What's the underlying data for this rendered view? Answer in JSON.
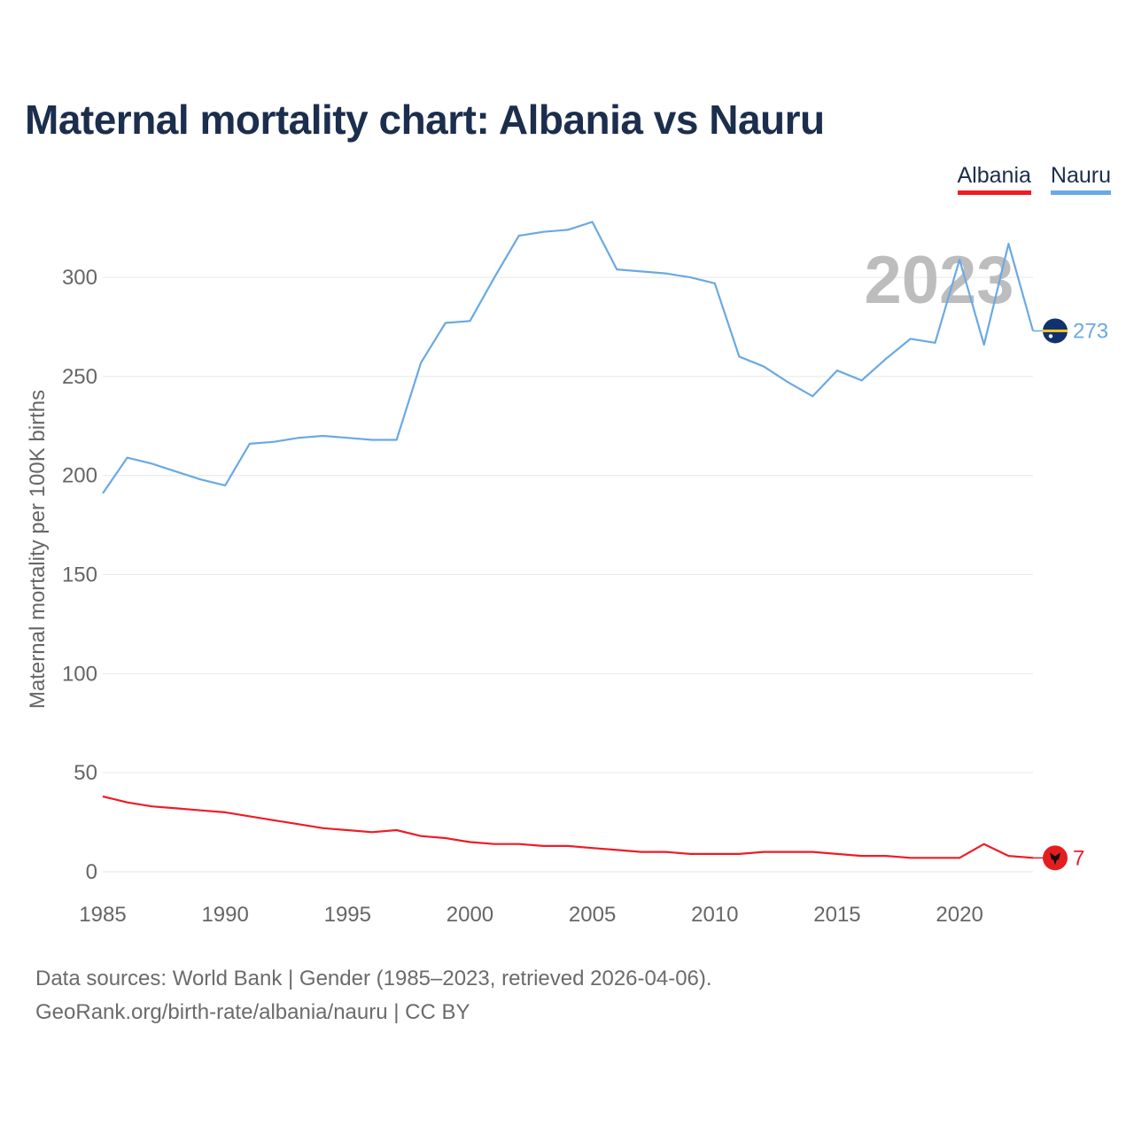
{
  "title": "Maternal mortality chart: Albania vs Nauru",
  "legend": [
    {
      "label": "Albania",
      "color": "#ee1c25"
    },
    {
      "label": "Nauru",
      "color": "#6aa9e3"
    }
  ],
  "watermark_year": "2023",
  "footer": {
    "source": "Data sources: World Bank | Gender (1985–2023, retrieved 2026-04-06).",
    "credit": "GeoRank.org/birth-rate/albania/nauru | CC BY"
  },
  "chart_data": {
    "type": "line",
    "title": "Maternal mortality chart: Albania vs Nauru",
    "xlabel": "",
    "ylabel": "Maternal mortality per 100K births",
    "xlim": [
      1985,
      2023
    ],
    "ylim": [
      0,
      330
    ],
    "x_ticks": [
      1985,
      1990,
      1995,
      2000,
      2005,
      2010,
      2015,
      2020
    ],
    "y_ticks": [
      0,
      50,
      100,
      150,
      200,
      250,
      300
    ],
    "grid": true,
    "legend_position": "top-right",
    "x": [
      1985,
      1986,
      1987,
      1988,
      1989,
      1990,
      1991,
      1992,
      1993,
      1994,
      1995,
      1996,
      1997,
      1998,
      1999,
      2000,
      2001,
      2002,
      2003,
      2004,
      2005,
      2006,
      2007,
      2008,
      2009,
      2010,
      2011,
      2012,
      2013,
      2014,
      2015,
      2016,
      2017,
      2018,
      2019,
      2020,
      2021,
      2022,
      2023
    ],
    "series": [
      {
        "name": "Albania",
        "color": "#ee1c25",
        "end_label": "7",
        "values": [
          38,
          35,
          33,
          32,
          31,
          30,
          28,
          26,
          24,
          22,
          21,
          20,
          21,
          18,
          17,
          15,
          14,
          14,
          13,
          13,
          12,
          11,
          10,
          10,
          9,
          9,
          9,
          10,
          10,
          10,
          9,
          8,
          8,
          7,
          7,
          7,
          14,
          8,
          7
        ]
      },
      {
        "name": "Nauru",
        "color": "#6aa9e3",
        "end_label": "273",
        "values": [
          191,
          209,
          206,
          202,
          198,
          195,
          216,
          217,
          219,
          220,
          219,
          218,
          218,
          257,
          277,
          278,
          300,
          321,
          323,
          324,
          328,
          304,
          303,
          302,
          300,
          297,
          260,
          255,
          247,
          240,
          253,
          248,
          259,
          269,
          267,
          309,
          266,
          317,
          273
        ]
      }
    ]
  }
}
